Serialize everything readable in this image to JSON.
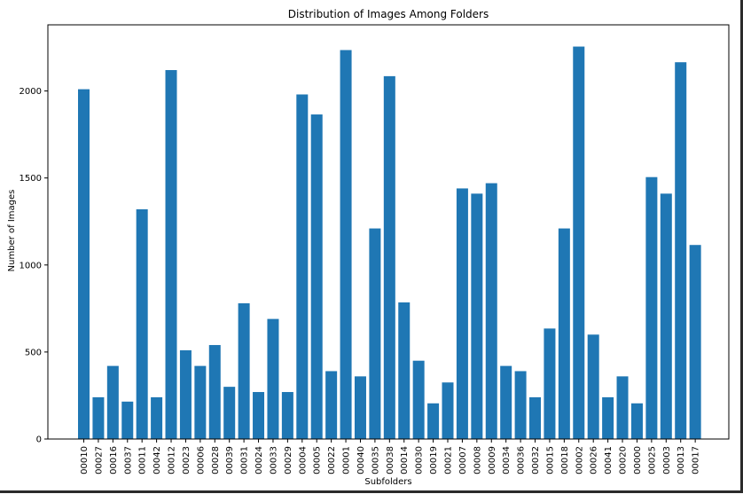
{
  "chart_data": {
    "type": "bar",
    "title": "Distribution of Images Among Folders",
    "xlabel": "Subfolders",
    "ylabel": "Number of Images",
    "ylim": [
      0,
      2380
    ],
    "yticks": [
      0,
      500,
      1000,
      1500,
      2000
    ],
    "grid": false,
    "bar_color": "#1f77b4",
    "categories": [
      "00010",
      "00027",
      "00016",
      "00037",
      "00011",
      "00042",
      "00012",
      "00023",
      "00006",
      "00028",
      "00039",
      "00031",
      "00024",
      "00033",
      "00029",
      "00004",
      "00005",
      "00022",
      "00001",
      "00040",
      "00035",
      "00038",
      "00014",
      "00030",
      "00019",
      "00021",
      "00007",
      "00008",
      "00009",
      "00034",
      "00036",
      "00032",
      "00015",
      "00018",
      "00002",
      "00026",
      "00041",
      "00020",
      "00000",
      "00025",
      "00003",
      "00013",
      "00017"
    ],
    "values": [
      2010,
      240,
      420,
      215,
      1320,
      240,
      2120,
      510,
      420,
      540,
      300,
      780,
      270,
      690,
      270,
      1980,
      1865,
      390,
      2235,
      360,
      1210,
      2085,
      785,
      450,
      205,
      325,
      1440,
      1410,
      1470,
      420,
      390,
      240,
      635,
      1210,
      2255,
      600,
      240,
      360,
      205,
      1505,
      1410,
      2165,
      1115
    ]
  }
}
